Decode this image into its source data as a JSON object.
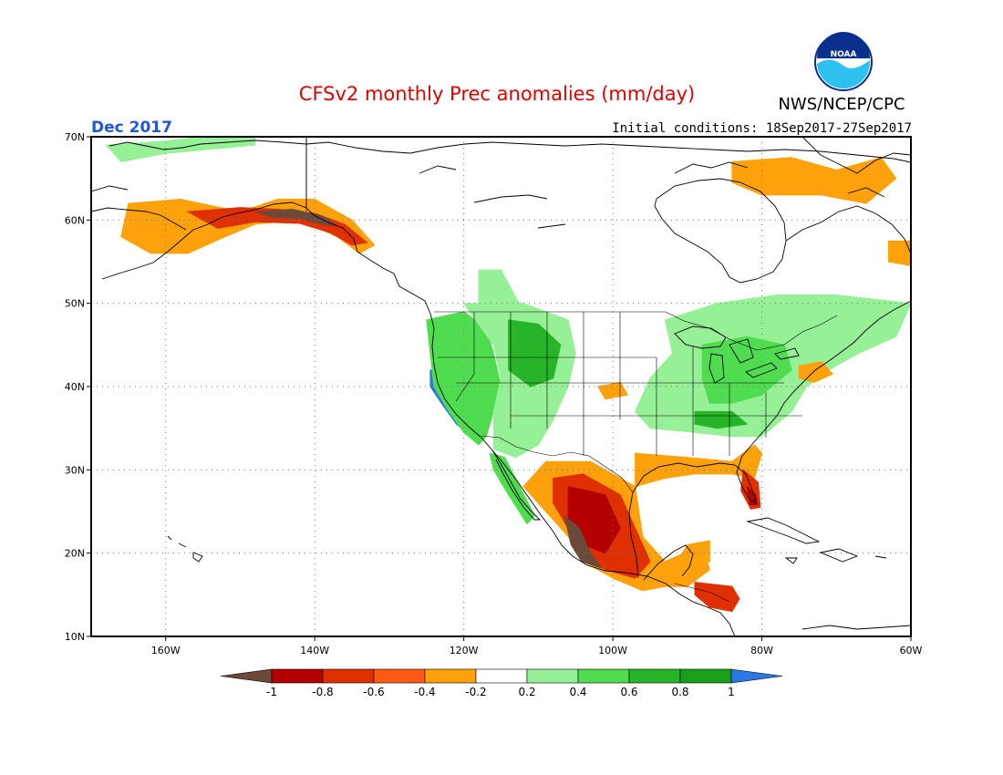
{
  "title": "CFSv2 monthly Prec anomalies (mm/day)",
  "agency": "NWS/NCEP/CPC",
  "logo_text": "NOAA",
  "month_label": "Dec 2017",
  "initial_conditions": "Initial conditions: 18Sep2017-27Sep2017",
  "map": {
    "projection": "lat-lon",
    "lon_range": [
      -170,
      -60
    ],
    "lat_range": [
      10,
      70
    ],
    "lon_ticks": [
      {
        "value": -160,
        "label": "160W"
      },
      {
        "value": -140,
        "label": "140W"
      },
      {
        "value": -120,
        "label": "120W"
      },
      {
        "value": -100,
        "label": "100W"
      },
      {
        "value": -80,
        "label": "80W"
      },
      {
        "value": -60,
        "label": "60W"
      }
    ],
    "lat_ticks": [
      {
        "value": 70,
        "label": "70N"
      },
      {
        "value": 60,
        "label": "60N"
      },
      {
        "value": 50,
        "label": "50N"
      },
      {
        "value": 40,
        "label": "40N"
      },
      {
        "value": 30,
        "label": "30N"
      },
      {
        "value": 20,
        "label": "20N"
      },
      {
        "value": 10,
        "label": "10N"
      }
    ],
    "grid": true
  },
  "colorbar": {
    "ticks": [
      "-1",
      "-0.8",
      "-0.6",
      "-0.4",
      "-0.2",
      "0.2",
      "0.4",
      "0.6",
      "0.8",
      "1"
    ],
    "colors": [
      "#6b4a3a",
      "#b40000",
      "#e03000",
      "#ff5a14",
      "#ffa10a",
      "#ffffff",
      "#96f096",
      "#50dc50",
      "#28b428",
      "#18a018",
      "#2b78e4"
    ]
  },
  "anomaly_regions": [
    {
      "name": "west-coast-wet",
      "color": "#2b78e4",
      "lonlat": [
        [
          -124.5,
          42
        ],
        [
          -123,
          42
        ],
        [
          -121,
          39
        ],
        [
          -119,
          37
        ],
        [
          -117.5,
          34.5
        ],
        [
          -119,
          34
        ],
        [
          -121,
          35.5
        ],
        [
          -123,
          38
        ],
        [
          -124.5,
          40
        ]
      ]
    },
    {
      "name": "west-coast-green",
      "color": "#50dc50",
      "lonlat": [
        [
          -125,
          48
        ],
        [
          -120,
          49
        ],
        [
          -117,
          47
        ],
        [
          -116,
          44
        ],
        [
          -115,
          40
        ],
        [
          -116,
          37
        ],
        [
          -117,
          34
        ],
        [
          -118,
          33
        ],
        [
          -120,
          34.5
        ],
        [
          -122,
          37
        ],
        [
          -124,
          40
        ],
        [
          -124.5,
          44
        ]
      ]
    },
    {
      "name": "interior-west-light",
      "color": "#96f096",
      "lonlat": [
        [
          -120,
          50
        ],
        [
          -112,
          50
        ],
        [
          -106,
          48
        ],
        [
          -105,
          44
        ],
        [
          -106,
          40
        ],
        [
          -108,
          36
        ],
        [
          -110,
          33
        ],
        [
          -113,
          31.5
        ],
        [
          -116,
          32.5
        ],
        [
          -116,
          37
        ],
        [
          -115,
          41
        ],
        [
          -116,
          45
        ]
      ]
    },
    {
      "name": "rockies-green",
      "color": "#28b428",
      "lonlat": [
        [
          -114,
          48
        ],
        [
          -110,
          47.5
        ],
        [
          -107,
          45
        ],
        [
          -108,
          41
        ],
        [
          -111,
          40
        ],
        [
          -114,
          42
        ]
      ]
    },
    {
      "name": "baja-green",
      "color": "#50dc50",
      "lonlat": [
        [
          -116.5,
          32
        ],
        [
          -114.5,
          31.5
        ],
        [
          -112.5,
          28
        ],
        [
          -110.5,
          24.5
        ],
        [
          -111.5,
          23.5
        ],
        [
          -114,
          27
        ],
        [
          -116,
          30
        ]
      ]
    },
    {
      "name": "central-canada-light",
      "color": "#96f096",
      "lonlat": [
        [
          -118,
          54
        ],
        [
          -115,
          54
        ],
        [
          -112,
          49
        ],
        [
          -118,
          49
        ]
      ]
    },
    {
      "name": "eastern-light",
      "color": "#96f096",
      "lonlat": [
        [
          -93,
          48
        ],
        [
          -86,
          50
        ],
        [
          -78,
          51
        ],
        [
          -70,
          51
        ],
        [
          -60,
          50
        ],
        [
          -62,
          46
        ],
        [
          -67,
          44
        ],
        [
          -71,
          42
        ],
        [
          -74,
          40
        ],
        [
          -76,
          37
        ],
        [
          -80,
          34
        ],
        [
          -84,
          34
        ],
        [
          -89,
          34.5
        ],
        [
          -95,
          35
        ],
        [
          -97,
          37
        ],
        [
          -95,
          41
        ],
        [
          -92,
          44
        ]
      ]
    },
    {
      "name": "great-lakes-green",
      "color": "#50dc50",
      "lonlat": [
        [
          -88,
          45
        ],
        [
          -82,
          46
        ],
        [
          -77,
          45
        ],
        [
          -76,
          42
        ],
        [
          -80,
          39
        ],
        [
          -84,
          38
        ],
        [
          -87,
          38
        ],
        [
          -88,
          41
        ]
      ]
    },
    {
      "name": "tennessee-green",
      "color": "#28b428",
      "lonlat": [
        [
          -89,
          37
        ],
        [
          -84,
          37
        ],
        [
          -82,
          35.5
        ],
        [
          -86,
          35
        ],
        [
          -89,
          35.5
        ]
      ]
    },
    {
      "name": "northeast-orange",
      "color": "#ffa10a",
      "lonlat": [
        [
          -75,
          42.5
        ],
        [
          -72,
          43
        ],
        [
          -70.5,
          41.5
        ],
        [
          -73,
          40.5
        ],
        [
          -75,
          41
        ]
      ]
    },
    {
      "name": "southeast-orange",
      "color": "#ffa10a",
      "lonlat": [
        [
          -97,
          32
        ],
        [
          -90,
          31.5
        ],
        [
          -84,
          31
        ],
        [
          -81,
          33
        ],
        [
          -80,
          32
        ],
        [
          -81,
          29
        ],
        [
          -84,
          29.5
        ],
        [
          -89,
          29.5
        ],
        [
          -93,
          29
        ],
        [
          -97,
          28
        ]
      ]
    },
    {
      "name": "florida-red",
      "color": "#e03000",
      "lonlat": [
        [
          -82.5,
          30
        ],
        [
          -80.5,
          28.5
        ],
        [
          -80.2,
          25.5
        ],
        [
          -81.5,
          25.3
        ],
        [
          -82.8,
          27.5
        ]
      ]
    },
    {
      "name": "florida-dark",
      "color": "#b40000",
      "lonlat": [
        [
          -82,
          28
        ],
        [
          -80.8,
          27
        ],
        [
          -80.6,
          25.8
        ],
        [
          -81.6,
          25.8
        ]
      ]
    },
    {
      "name": "kansas-orange",
      "color": "#ffa10a",
      "lonlat": [
        [
          -102,
          40
        ],
        [
          -99,
          40.5
        ],
        [
          -98,
          39
        ],
        [
          -101,
          38.5
        ]
      ]
    },
    {
      "name": "mexico-orange",
      "color": "#ffa10a",
      "lonlat": [
        [
          -109,
          31
        ],
        [
          -103,
          31
        ],
        [
          -97,
          28
        ],
        [
          -96,
          22
        ],
        [
          -93,
          19
        ],
        [
          -88,
          21
        ],
        [
          -87,
          18
        ],
        [
          -90,
          16
        ],
        [
          -93,
          16
        ],
        [
          -96,
          15.5
        ],
        [
          -100,
          17
        ],
        [
          -104,
          19
        ],
        [
          -106,
          22
        ],
        [
          -109,
          25
        ],
        [
          -112,
          28
        ]
      ]
    },
    {
      "name": "mexico-red",
      "color": "#e03000",
      "lonlat": [
        [
          -108,
          29
        ],
        [
          -104,
          29.5
        ],
        [
          -99,
          27
        ],
        [
          -97,
          23
        ],
        [
          -95,
          19
        ],
        [
          -97,
          17
        ],
        [
          -101,
          18
        ],
        [
          -104,
          20
        ],
        [
          -106,
          23
        ],
        [
          -108,
          26
        ]
      ]
    },
    {
      "name": "mexico-darkred",
      "color": "#b40000",
      "lonlat": [
        [
          -106,
          28
        ],
        [
          -101,
          27
        ],
        [
          -99,
          23
        ],
        [
          -101,
          20
        ],
        [
          -104,
          21
        ],
        [
          -106,
          24
        ]
      ]
    },
    {
      "name": "mexico-brown",
      "color": "#6b4a3a",
      "lonlat": [
        [
          -106.5,
          24.5
        ],
        [
          -104.5,
          23
        ],
        [
          -103,
          20
        ],
        [
          -101.5,
          18.2
        ],
        [
          -104.2,
          19
        ],
        [
          -105.6,
          21
        ]
      ]
    },
    {
      "name": "central-america-red",
      "color": "#e03000",
      "lonlat": [
        [
          -89,
          16.5
        ],
        [
          -84,
          16
        ],
        [
          -83,
          14.5
        ],
        [
          -84,
          13
        ],
        [
          -87,
          13.5
        ],
        [
          -89,
          15
        ]
      ]
    },
    {
      "name": "yucatan-orange",
      "color": "#ffa10a",
      "lonlat": [
        [
          -90,
          21
        ],
        [
          -87,
          21.5
        ],
        [
          -87,
          19
        ],
        [
          -89,
          18.5
        ],
        [
          -91,
          19.5
        ]
      ]
    },
    {
      "name": "alaska-orange",
      "color": "#ffa10a",
      "lonlat": [
        [
          -165,
          62
        ],
        [
          -158,
          62.5
        ],
        [
          -150,
          61
        ],
        [
          -145,
          62.5
        ],
        [
          -140,
          62.5
        ],
        [
          -135,
          60
        ],
        [
          -132,
          57
        ],
        [
          -134,
          56
        ],
        [
          -137,
          58
        ],
        [
          -142,
          60
        ],
        [
          -148,
          59.5
        ],
        [
          -152,
          58
        ],
        [
          -157,
          56
        ],
        [
          -162,
          56
        ],
        [
          -166,
          58
        ]
      ]
    },
    {
      "name": "alaska-red",
      "color": "#e03000",
      "lonlat": [
        [
          -157,
          61
        ],
        [
          -150,
          61.5
        ],
        [
          -145,
          61.3
        ],
        [
          -140,
          60.8
        ],
        [
          -136,
          59.5
        ],
        [
          -133,
          57.3
        ],
        [
          -135,
          57
        ],
        [
          -138,
          58.5
        ],
        [
          -142,
          59.6
        ],
        [
          -148,
          59.8
        ],
        [
          -153,
          59
        ]
      ]
    },
    {
      "name": "alaska-brown",
      "color": "#6b4a3a",
      "lonlat": [
        [
          -148,
          61
        ],
        [
          -143,
          61.3
        ],
        [
          -139,
          60.5
        ],
        [
          -137,
          59.3
        ],
        [
          -139,
          59.5
        ],
        [
          -142,
          60.2
        ],
        [
          -146,
          60.4
        ]
      ]
    },
    {
      "name": "canada-arctic-orange",
      "color": "#ffa10a",
      "lonlat": [
        [
          -84,
          67
        ],
        [
          -76,
          67.5
        ],
        [
          -70,
          66
        ],
        [
          -64,
          67.5
        ],
        [
          -62,
          65
        ],
        [
          -66,
          62
        ],
        [
          -72,
          63
        ],
        [
          -80,
          63
        ],
        [
          -84,
          64.5
        ]
      ]
    },
    {
      "name": "north-alaska-light",
      "color": "#96f096",
      "lonlat": [
        [
          -168,
          69
        ],
        [
          -160,
          69.5
        ],
        [
          -155,
          70
        ],
        [
          -148,
          70
        ],
        [
          -148,
          69
        ],
        [
          -160,
          68
        ],
        [
          -166,
          67
        ]
      ]
    },
    {
      "name": "newfoundland-orange",
      "color": "#ffa10a",
      "lonlat": [
        [
          -63,
          57.5
        ],
        [
          -60,
          57.5
        ],
        [
          -60,
          54.5
        ],
        [
          -63,
          55
        ]
      ]
    }
  ]
}
